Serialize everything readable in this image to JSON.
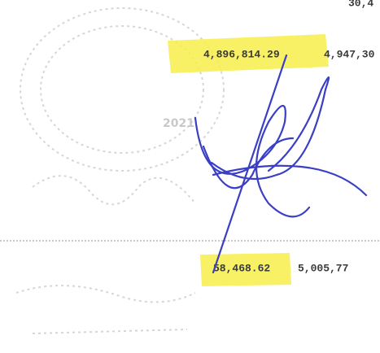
{
  "document": {
    "header_fragment": "30,4",
    "rows": [
      [
        "4,896,814.29",
        "4,947,30"
      ],
      [
        "58,468.62",
        "5,005,77"
      ]
    ],
    "stamp": "2021"
  }
}
